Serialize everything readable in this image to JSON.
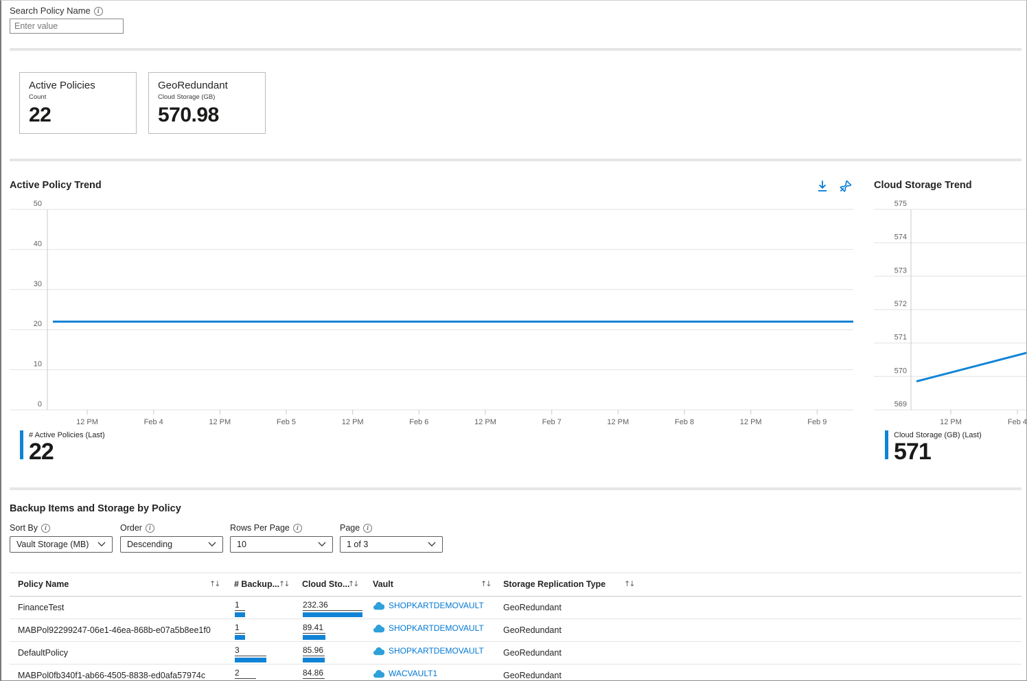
{
  "search": {
    "label": "Search Policy Name",
    "placeholder": "Enter value"
  },
  "cards": [
    {
      "title": "Active Policies",
      "subtitle": "Count",
      "value": "22"
    },
    {
      "title": "GeoRedundant",
      "subtitle": "Cloud Storage (GB)",
      "value": "570.98"
    }
  ],
  "chart_data": [
    {
      "type": "line",
      "title": "Active Policy Trend",
      "x": [
        "12 PM",
        "Feb 4",
        "12 PM",
        "Feb 5",
        "12 PM",
        "Feb 6",
        "12 PM",
        "Feb 7",
        "12 PM",
        "Feb 8",
        "12 PM",
        "Feb 9"
      ],
      "series": [
        {
          "name": "# Active Policies",
          "values": [
            22,
            22,
            22,
            22,
            22,
            22,
            22,
            22,
            22,
            22,
            22,
            22
          ]
        }
      ],
      "ylim": [
        0,
        50
      ],
      "yticks": [
        0,
        10,
        20,
        30,
        40,
        50
      ],
      "grid": true,
      "legend_position": "bottom-left",
      "line_color": "#1083d6",
      "legend_label": "# Active Policies (Last)",
      "legend_value": "22"
    },
    {
      "type": "line",
      "title": "Cloud Storage Trend",
      "x": [
        "12 PM",
        "Feb 4"
      ],
      "series": [
        {
          "name": "Cloud Storage (GB)",
          "values": [
            569.85,
            570.72
          ]
        }
      ],
      "ylim": [
        569,
        575
      ],
      "yticks": [
        569,
        570,
        571,
        572,
        573,
        574,
        575
      ],
      "grid": true,
      "legend_position": "bottom-left",
      "line_color": "#1083d6",
      "legend_label": "Cloud Storage (GB) (Last)",
      "legend_value": "571"
    }
  ],
  "icons": {
    "download": "download-icon",
    "pin": "pin-icon",
    "info": "info-icon",
    "chevron": "chevron-down-icon",
    "cloud": "cloud-icon",
    "sort": "sort-up-down-icon"
  },
  "table_section": {
    "title": "Backup Items and Storage by Policy",
    "filters": [
      {
        "label": "Sort By",
        "value": "Vault Storage (MB)"
      },
      {
        "label": "Order",
        "value": "Descending"
      },
      {
        "label": "Rows Per Page",
        "value": "10"
      },
      {
        "label": "Page",
        "value": "1 of 3"
      }
    ],
    "columns": [
      "Policy Name",
      "# Backup...",
      "Cloud Sto...",
      "Vault",
      "Storage Replication Type"
    ],
    "rows": [
      {
        "policy_name": "FinanceTest",
        "backup_items": 1,
        "cloud_storage": 232.36,
        "vault": "SHOPKARTDEMOVAULT",
        "storage_replication_type": "GeoRedundant"
      },
      {
        "policy_name": "MABPol92299247-06e1-46ea-868b-e07a5b8ee1f0",
        "backup_items": 1,
        "cloud_storage": 89.41,
        "vault": "SHOPKARTDEMOVAULT",
        "storage_replication_type": "GeoRedundant"
      },
      {
        "policy_name": "DefaultPolicy",
        "backup_items": 3,
        "cloud_storage": 85.96,
        "vault": "SHOPKARTDEMOVAULT",
        "storage_replication_type": "GeoRedundant"
      },
      {
        "policy_name": "MABPol0fb340f1-ab66-4505-8838-ed0afa57974c",
        "backup_items": 2,
        "cloud_storage": 84.86,
        "vault": "WACVAULT1",
        "storage_replication_type": "GeoRedundant"
      }
    ]
  },
  "colors": {
    "accent_blue": "#1083d6",
    "link_blue": "#0078d4",
    "divider_gray": "#e6e6e6"
  }
}
